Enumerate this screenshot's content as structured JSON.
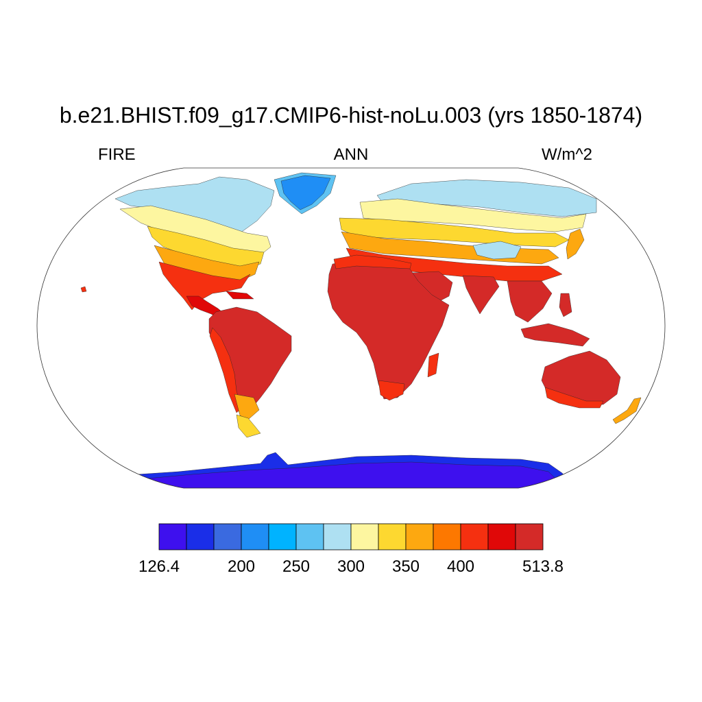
{
  "figure": {
    "title": "b.e21.BHIST.f09_g17.CMIP6-hist-noLu.003 (yrs 1850-1874)",
    "variable": "FIRE",
    "season": "ANN",
    "units": "W/m^2"
  },
  "colorbar": {
    "colors": [
      "#3e10ee",
      "#1a2ee8",
      "#3a6ae0",
      "#1f8ef5",
      "#00b3ff",
      "#5ec2f2",
      "#aee0f2",
      "#fdf6a0",
      "#fdd830",
      "#fda810",
      "#fd7800",
      "#f53010",
      "#e00808",
      "#d42a28"
    ],
    "labels": [
      "126.4",
      "200",
      "250",
      "300",
      "350",
      "400",
      "513.8"
    ],
    "label_bins": [
      0,
      3,
      5,
      7,
      9,
      11,
      14
    ]
  },
  "map_colors": {
    "antarctica": "#3e10ee",
    "antarctica_coast": "#1a2ee8",
    "greenland": "#1f8ef5",
    "greenland_edge": "#5ec2f2",
    "arctic_fringe": "#aee0f2",
    "cold_temperate": "#fdf6a0",
    "temperate": "#fdd830",
    "warm_temperate": "#fda810",
    "subtropical": "#fd7800",
    "warm": "#f53010",
    "hot": "#e00808",
    "tropical": "#d42a28",
    "tibet": "#aee0f2"
  }
}
